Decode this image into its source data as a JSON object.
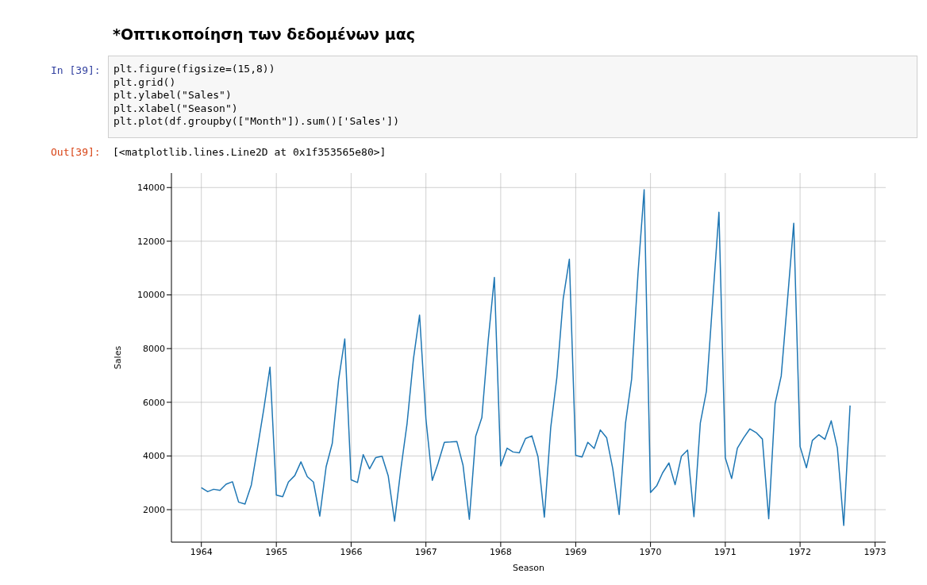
{
  "chart_data": {
    "type": "line",
    "title": "*Οπτικοποίηση των δεδομένων μας",
    "annotations": [
      "In [39]:",
      "plt.figure(figsize=(15,8))",
      "plt.grid()",
      "plt.ylabel(\"Sales\")",
      "plt.xlabel(\"Season\")",
      "plt.plot(df.groupby([\"Month\"]).sum()['Sales'])",
      "Out[39]:",
      "[<matplotlib.lines.Line2D at 0x1f353565e80>]"
    ],
    "xlabel": "Season",
    "ylabel": "Sales",
    "x": [
      "1964-01",
      "1964-02",
      "1964-03",
      "1964-04",
      "1964-05",
      "1964-06",
      "1964-07",
      "1964-08",
      "1964-09",
      "1964-10",
      "1964-11",
      "1964-12",
      "1965-01",
      "1965-02",
      "1965-03",
      "1965-04",
      "1965-05",
      "1965-06",
      "1965-07",
      "1965-08",
      "1965-09",
      "1965-10",
      "1965-11",
      "1965-12",
      "1966-01",
      "1966-02",
      "1966-03",
      "1966-04",
      "1966-05",
      "1966-06",
      "1966-07",
      "1966-08",
      "1966-09",
      "1966-10",
      "1966-11",
      "1966-12",
      "1967-01",
      "1967-02",
      "1967-03",
      "1967-04",
      "1967-05",
      "1967-06",
      "1967-07",
      "1967-08",
      "1967-09",
      "1967-10",
      "1967-11",
      "1967-12",
      "1968-01",
      "1968-02",
      "1968-03",
      "1968-04",
      "1968-05",
      "1968-06",
      "1968-07",
      "1968-08",
      "1968-09",
      "1968-10",
      "1968-11",
      "1968-12",
      "1969-01",
      "1969-02",
      "1969-03",
      "1969-04",
      "1969-05",
      "1969-06",
      "1969-07",
      "1969-08",
      "1969-09",
      "1969-10",
      "1969-11",
      "1969-12",
      "1970-01",
      "1970-02",
      "1970-03",
      "1970-04",
      "1970-05",
      "1970-06",
      "1970-07",
      "1970-08",
      "1970-09",
      "1970-10",
      "1970-11",
      "1970-12",
      "1971-01",
      "1971-02",
      "1971-03",
      "1971-04",
      "1971-05",
      "1971-06",
      "1971-07",
      "1971-08",
      "1971-09",
      "1971-10",
      "1971-11",
      "1971-12",
      "1972-01",
      "1972-02",
      "1972-03",
      "1972-04",
      "1972-05",
      "1972-06",
      "1972-07",
      "1972-08",
      "1972-09"
    ],
    "series": [
      {
        "color": "#1f77b4",
        "values": [
          2820,
          2670,
          2760,
          2720,
          2950,
          3040,
          2280,
          2210,
          2920,
          4300,
          5760,
          7310,
          2540,
          2480,
          3030,
          3270,
          3780,
          3230,
          3030,
          1760,
          3600,
          4470,
          6840,
          8360,
          3110,
          3010,
          4050,
          3520,
          3940,
          3990,
          3260,
          1570,
          3530,
          5210,
          7610,
          9250,
          5380,
          3090,
          3720,
          4510,
          4520,
          4540,
          3660,
          1640,
          4740,
          5430,
          8310,
          10650,
          3630,
          4290,
          4150,
          4120,
          4650,
          4750,
          3970,
          1720,
          5050,
          6920,
          9860,
          11330,
          4020,
          3960,
          4510,
          4280,
          4970,
          4680,
          3520,
          1820,
          5220,
          6870,
          10800,
          13920,
          2640,
          2900,
          3370,
          3740,
          2930,
          3990,
          4220,
          1740,
          5220,
          6420,
          9840,
          13080,
          3930,
          3160,
          4290,
          4680,
          5010,
          4870,
          4630,
          1660,
          5950,
          6980,
          9850,
          12670,
          4350,
          3560,
          4580,
          4790,
          4620,
          5310,
          4300,
          1410,
          5880
        ]
      }
    ],
    "xlim": [
      "1963-08-08",
      "1973-02-22"
    ],
    "xticks": [
      {
        "value": "1964",
        "label": "1964"
      },
      {
        "value": "1965",
        "label": "1965"
      },
      {
        "value": "1966",
        "label": "1966"
      },
      {
        "value": "1967",
        "label": "1967"
      },
      {
        "value": "1968",
        "label": "1968"
      },
      {
        "value": "1969",
        "label": "1969"
      },
      {
        "value": "1970",
        "label": "1970"
      },
      {
        "value": "1971",
        "label": "1971"
      },
      {
        "value": "1972",
        "label": "1972"
      },
      {
        "value": "1973",
        "label": "1973"
      }
    ],
    "ylim": [
      790,
      14540
    ],
    "yticks": [
      2000,
      4000,
      6000,
      8000,
      10000,
      12000,
      14000
    ],
    "grid": true,
    "marker": "none",
    "line_style": "solid"
  }
}
